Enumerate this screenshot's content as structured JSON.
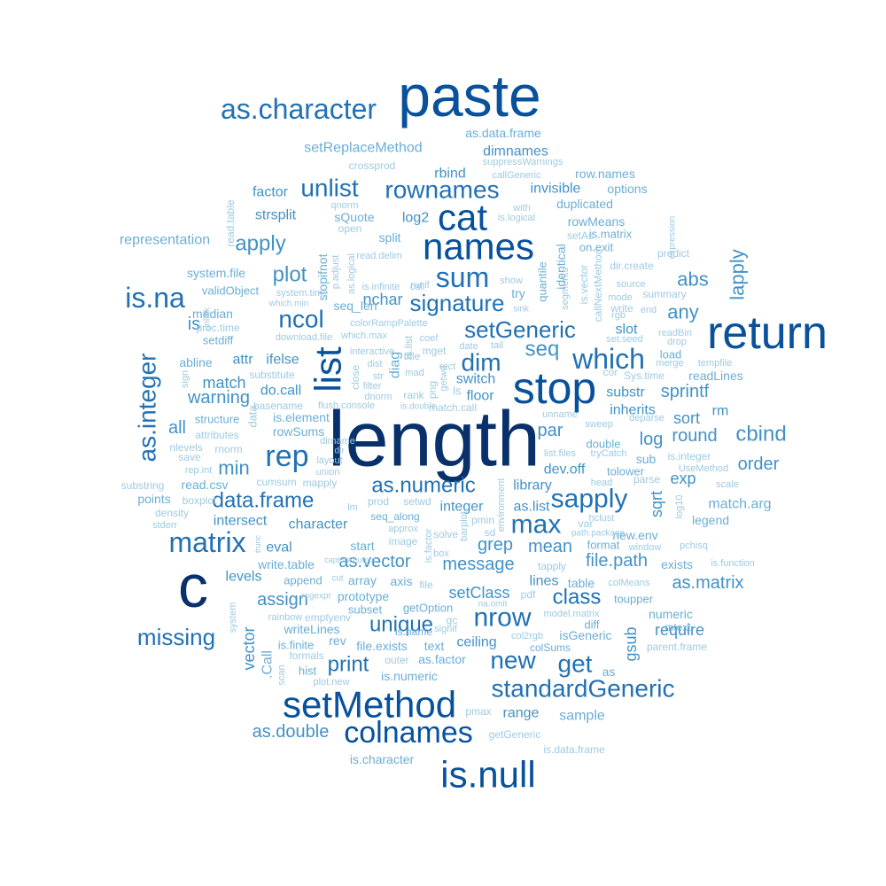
{
  "colors": {
    "background": "#ffffff",
    "tiers": [
      "#08306b",
      "#08519c",
      "#2171b5",
      "#4292c6",
      "#6baed6",
      "#9ecae1"
    ]
  },
  "words": [
    {
      "text": "length",
      "tier": 0
    },
    {
      "text": "c",
      "tier": 0
    },
    {
      "text": "paste",
      "tier": 1
    },
    {
      "text": "return",
      "tier": 1
    },
    {
      "text": "stop",
      "tier": 1
    },
    {
      "text": "is.null",
      "tier": 1
    },
    {
      "text": "names",
      "tier": 1
    },
    {
      "text": "cat",
      "tier": 1
    },
    {
      "text": "list",
      "tier": 1
    },
    {
      "text": "setMethod",
      "tier": 1
    },
    {
      "text": "colnames",
      "tier": 1
    },
    {
      "text": "as.character",
      "tier": 2
    },
    {
      "text": "rep",
      "tier": 2
    },
    {
      "text": "matrix",
      "tier": 2
    },
    {
      "text": "is.na",
      "tier": 2
    },
    {
      "text": "sum",
      "tier": 2
    },
    {
      "text": "which",
      "tier": 2
    },
    {
      "text": "sapply",
      "tier": 2
    },
    {
      "text": "nrow",
      "tier": 2
    },
    {
      "text": "max",
      "tier": 2
    },
    {
      "text": "standardGeneric",
      "tier": 2
    },
    {
      "text": "as.integer",
      "tier": 2
    },
    {
      "text": "unlist",
      "tier": 2
    },
    {
      "text": "rownames",
      "tier": 2
    },
    {
      "text": "dim",
      "tier": 2
    },
    {
      "text": "ncol",
      "tier": 2
    },
    {
      "text": "setGeneric",
      "tier": 2
    },
    {
      "text": "signature",
      "tier": 2
    },
    {
      "text": "data.frame",
      "tier": 2
    },
    {
      "text": "as.numeric",
      "tier": 2
    },
    {
      "text": "unique",
      "tier": 2
    },
    {
      "text": "missing",
      "tier": 2
    },
    {
      "text": "get",
      "tier": 2
    },
    {
      "text": "new",
      "tier": 2
    },
    {
      "text": "print",
      "tier": 2
    },
    {
      "text": "class",
      "tier": 2
    },
    {
      "text": "apply",
      "tier": 3
    },
    {
      "text": "plot",
      "tier": 3
    },
    {
      "text": "lapply",
      "tier": 3
    },
    {
      "text": "any",
      "tier": 3
    },
    {
      "text": "abs",
      "tier": 3
    },
    {
      "text": "seq",
      "tier": 3
    },
    {
      "text": "cbind",
      "tier": 3
    },
    {
      "text": "min",
      "tier": 3
    },
    {
      "text": "order",
      "tier": 3
    },
    {
      "text": "as.matrix",
      "tier": 3
    },
    {
      "text": "grep",
      "tier": 3
    },
    {
      "text": "mean",
      "tier": 3
    },
    {
      "text": "file.path",
      "tier": 3
    },
    {
      "text": "as.vector",
      "tier": 3
    },
    {
      "text": "message",
      "tier": 3
    },
    {
      "text": "assign",
      "tier": 3
    },
    {
      "text": "as.double",
      "tier": 3
    },
    {
      "text": "par",
      "tier": 3
    },
    {
      "text": "sprintf",
      "tier": 3
    },
    {
      "text": "round",
      "tier": 3
    },
    {
      "text": "log",
      "tier": 3
    },
    {
      "text": "sqrt",
      "tier": 3
    },
    {
      "text": "exp",
      "tier": 3
    },
    {
      "text": "gsub",
      "tier": 3
    },
    {
      "text": "vector",
      "tier": 3
    },
    {
      "text": "all",
      "tier": 3
    },
    {
      "text": "is",
      "tier": 3
    },
    {
      "text": "warning",
      "tier": 3
    },
    {
      "text": "match",
      "tier": 3
    },
    {
      "text": "setClass",
      "tier": 3
    },
    {
      "text": "require",
      "tier": 3
    },
    {
      "text": "sort",
      "tier": 3
    },
    {
      "text": "switch",
      "tier": 3
    },
    {
      "text": "dimnames",
      "tier": 3
    },
    {
      "text": "nchar",
      "tier": 3
    },
    {
      "text": "strsplit",
      "tier": 3
    },
    {
      "text": "log2",
      "tier": 3
    },
    {
      "text": "do.call",
      "tier": 3
    },
    {
      "text": "ifelse",
      "tier": 3
    },
    {
      "text": "attr",
      "tier": 3
    },
    {
      "text": "eval",
      "tier": 3
    },
    {
      "text": "character",
      "tier": 3
    },
    {
      "text": "intersect",
      "tier": 3
    },
    {
      "text": "library",
      "tier": 3
    },
    {
      "text": "as.list",
      "tier": 3
    },
    {
      "text": "integer",
      "tier": 3
    },
    {
      "text": "lines",
      "tier": 3
    },
    {
      "text": "levels",
      "tier": 3
    },
    {
      "text": "rbind",
      "tier": 3
    },
    {
      "text": "invisible",
      "tier": 3
    },
    {
      "text": "factor",
      "tier": 3
    },
    {
      "text": "floor",
      "tier": 3
    },
    {
      "text": "slot",
      "tier": 3
    },
    {
      "text": "substr",
      "tier": 3
    },
    {
      "text": "inherits",
      "tier": 3
    },
    {
      "text": "rm",
      "tier": 3
    },
    {
      "text": "dev.off",
      "tier": 3
    },
    {
      "text": "ceiling",
      "tier": 3
    },
    {
      "text": "range",
      "tier": 3
    },
    {
      "text": "sample",
      "tier": 4
    },
    {
      "text": "setReplaceMethod",
      "tier": 4
    },
    {
      "text": "representation",
      "tier": 4
    },
    {
      "text": "system.file",
      "tier": 4
    },
    {
      "text": "as.data.frame",
      "tier": 4
    },
    {
      "text": "duplicated",
      "tier": 4
    },
    {
      "text": "options",
      "tier": 4
    },
    {
      "text": "row.names",
      "tier": 4
    },
    {
      "text": "rowMeans",
      "tier": 4
    },
    {
      "text": "is.matrix",
      "tier": 4
    },
    {
      "text": "on.exit",
      "tier": 4
    },
    {
      "text": "split",
      "tier": 4
    },
    {
      "text": "stopifnot",
      "tier": 4
    },
    {
      "text": "seq_len",
      "tier": 4
    },
    {
      "text": "try",
      "tier": 4
    },
    {
      "text": "identical",
      "tier": 4
    },
    {
      "text": "quantile",
      "tier": 4
    },
    {
      "text": "median",
      "tier": 4
    },
    {
      "text": "setdiff",
      "tier": 4
    },
    {
      "text": "abline",
      "tier": 4
    },
    {
      "text": "readLines",
      "tier": 4
    },
    {
      "text": "is.element",
      "tier": 4
    },
    {
      "text": "rowSums",
      "tier": 4
    },
    {
      "text": "structure",
      "tier": 4
    },
    {
      "text": "double",
      "tier": 4
    },
    {
      "text": "sub",
      "tier": 4
    },
    {
      "text": "tolower",
      "tier": 4
    },
    {
      "text": "match.arg",
      "tier": 4
    },
    {
      "text": "legend",
      "tier": 4
    },
    {
      "text": "read.csv",
      "tier": 4
    },
    {
      "text": "points",
      "tier": 4
    },
    {
      "text": "write.table",
      "tier": 4
    },
    {
      "text": "start",
      "tier": 4
    },
    {
      "text": "seq_along",
      "tier": 4
    },
    {
      "text": "table",
      "tier": 4
    },
    {
      "text": "format",
      "tier": 4
    },
    {
      "text": "new.env",
      "tier": 4
    },
    {
      "text": "exists",
      "tier": 4
    },
    {
      "text": "numeric",
      "tier": 4
    },
    {
      "text": "toupper",
      "tier": 4
    },
    {
      "text": "append",
      "tier": 4
    },
    {
      "text": "array",
      "tier": 4
    },
    {
      "text": "axis",
      "tier": 4
    },
    {
      "text": "prototype",
      "tier": 4
    },
    {
      "text": "subset",
      "tier": 4
    },
    {
      "text": "getOption",
      "tier": 4
    },
    {
      "text": "writeLines",
      "tier": 4
    },
    {
      "text": "is.finite",
      "tier": 4
    },
    {
      "text": "file.exists",
      "tier": 4
    },
    {
      "text": "text",
      "tier": 4
    },
    {
      "text": "is.name",
      "tier": 4
    },
    {
      "text": "as.factor",
      "tier": 4
    },
    {
      "text": "is.numeric",
      "tier": 4
    },
    {
      "text": "isGeneric",
      "tier": 4
    },
    {
      "text": "colSums",
      "tier": 4
    },
    {
      "text": "as",
      "tier": 4
    },
    {
      "text": "rev",
      "tier": 4
    },
    {
      "text": "hist",
      "tier": 4
    },
    {
      "text": ".Call",
      "tier": 4
    },
    {
      "text": "is.character",
      "tier": 4
    },
    {
      "text": "getGeneric",
      "tier": 5
    },
    {
      "text": "is.data.frame",
      "tier": 5
    },
    {
      "text": "pmax",
      "tier": 5
    },
    {
      "text": "mtext",
      "tier": 4
    },
    {
      "text": "parent.frame",
      "tier": 5
    },
    {
      "text": "diff",
      "tier": 4
    },
    {
      "text": "model.matrix",
      "tier": 5
    },
    {
      "text": "colMeans",
      "tier": 5
    },
    {
      "text": "load",
      "tier": 4
    },
    {
      "text": "Sys.time",
      "tier": 5
    },
    {
      "text": "is.integer",
      "tier": 5
    },
    {
      "text": "summary",
      "tier": 5
    },
    {
      "text": "source",
      "tier": 5
    },
    {
      "text": "predict",
      "tier": 5
    },
    {
      "text": "mode",
      "tier": 5
    },
    {
      "text": "write",
      "tier": 5
    },
    {
      "text": "end",
      "tier": 5
    },
    {
      "text": "dir.create",
      "tier": 5
    },
    {
      "text": "setAs",
      "tier": 5
    },
    {
      "text": "is.vector",
      "tier": 5
    },
    {
      "text": "callNextMethod",
      "tier": 5
    },
    {
      "text": "rgb",
      "tier": 5
    },
    {
      "text": "set.seed",
      "tier": 5
    },
    {
      "text": "readBin",
      "tier": 5
    },
    {
      "text": "drop",
      "tier": 5
    },
    {
      "text": "merge",
      "tier": 5
    },
    {
      "text": "tempfile",
      "tier": 5
    },
    {
      "text": "expression",
      "tier": 5
    },
    {
      "text": "cor",
      "tier": 5
    },
    {
      "text": "unname",
      "tier": 5
    },
    {
      "text": "sweep",
      "tier": 5
    },
    {
      "text": "deparse",
      "tier": 5
    },
    {
      "text": "UseMethod",
      "tier": 5
    },
    {
      "text": "scale",
      "tier": 5
    },
    {
      "text": "parse",
      "tier": 5
    },
    {
      "text": "head",
      "tier": 5
    },
    {
      "text": "log10",
      "tier": 5
    },
    {
      "text": "pchisq",
      "tier": 5
    },
    {
      "text": "window",
      "tier": 5
    },
    {
      "text": "is.function",
      "tier": 5
    },
    {
      "text": "hclust",
      "tier": 5
    },
    {
      "text": "var",
      "tier": 5
    },
    {
      "text": "path.package",
      "tier": 5
    },
    {
      "text": "tapply",
      "tier": 5
    },
    {
      "text": "list.files",
      "tier": 5
    },
    {
      "text": "tryCatch",
      "tier": 5
    },
    {
      "text": "environment",
      "tier": 5
    },
    {
      "text": "pmin",
      "tier": 5
    },
    {
      "text": "sd",
      "tier": 5
    },
    {
      "text": "barplot",
      "tier": 5
    },
    {
      "text": "solve",
      "tier": 5
    },
    {
      "text": "is.factor",
      "tier": 5
    },
    {
      "text": "box",
      "tier": 5
    },
    {
      "text": "image",
      "tier": 5
    },
    {
      "text": "approx",
      "tier": 5
    },
    {
      "text": "setwd",
      "tier": 5
    },
    {
      "text": "prod",
      "tier": 5
    },
    {
      "text": "lm",
      "tier": 5
    },
    {
      "text": "substring",
      "tier": 5
    },
    {
      "text": "density",
      "tier": 5
    },
    {
      "text": "stderr",
      "tier": 5
    },
    {
      "text": "boxplot",
      "tier": 5
    },
    {
      "text": "rep.int",
      "tier": 5
    },
    {
      "text": "cumsum",
      "tier": 5
    },
    {
      "text": "mapply",
      "tier": 5
    },
    {
      "text": "rnorm",
      "tier": 5
    },
    {
      "text": "nlevels",
      "tier": 5
    },
    {
      "text": "save",
      "tier": 5
    },
    {
      "text": "attributes",
      "tier": 5
    },
    {
      "text": "layout",
      "tier": 5
    },
    {
      "text": "union",
      "tier": 5
    },
    {
      "text": "dir",
      "tier": 5
    },
    {
      "text": "dirname",
      "tier": 5
    },
    {
      "text": "basename",
      "tier": 5
    },
    {
      "text": "flush.console",
      "tier": 5
    },
    {
      "text": "substitute",
      "tier": 5
    },
    {
      "text": "data",
      "tier": 5
    },
    {
      "text": "sign",
      "tier": 5
    },
    {
      "text": "proc.time",
      "tier": 5
    },
    {
      "text": "unlink",
      "tier": 5
    },
    {
      "text": "validObject",
      "tier": 4
    },
    {
      "text": "system.time",
      "tier": 5
    },
    {
      "text": "which.min",
      "tier": 5
    },
    {
      "text": "download.file",
      "tier": 5
    },
    {
      "text": "which.max",
      "tier": 5
    },
    {
      "text": "colorRampPalette",
      "tier": 5
    },
    {
      "text": "interactive",
      "tier": 5
    },
    {
      "text": "close",
      "tier": 5
    },
    {
      "text": "filter",
      "tier": 5
    },
    {
      "text": "dist",
      "tier": 5
    },
    {
      "text": "str",
      "tier": 5
    },
    {
      "text": "dnorm",
      "tier": 5
    },
    {
      "text": "is.double",
      "tier": 5
    },
    {
      "text": "match.call",
      "tier": 5
    },
    {
      "text": "rank",
      "tier": 5
    },
    {
      "text": "mad",
      "tier": 5
    },
    {
      "text": "diag",
      "tier": 4
    },
    {
      "text": "coef",
      "tier": 5
    },
    {
      "text": "mget",
      "tier": 5
    },
    {
      "text": "is.list",
      "tier": 5
    },
    {
      "text": "rect",
      "tier": 5
    },
    {
      "text": "date",
      "tier": 5
    },
    {
      "text": "tail",
      "tier": 5
    },
    {
      "text": "sink",
      "tier": 5
    },
    {
      "text": "ls",
      "tier": 5
    },
    {
      "text": "png",
      "tier": 5
    },
    {
      "text": "getwd",
      "tier": 5
    },
    {
      "text": "runif",
      "tier": 5
    },
    {
      "text": "call",
      "tier": 5
    },
    {
      "text": "is.infinite",
      "tier": 5
    },
    {
      "text": "as.logical",
      "tier": 5
    },
    {
      "text": "p.adjust",
      "tier": 5
    },
    {
      "text": "sQuote",
      "tier": 4
    },
    {
      "text": "open",
      "tier": 5
    },
    {
      "text": "read.delim",
      "tier": 5
    },
    {
      "text": "qnorm",
      "tier": 5
    },
    {
      "text": "is.logical",
      "tier": 5
    },
    {
      "text": "with",
      "tier": 5
    },
    {
      "text": "show",
      "tier": 5
    },
    {
      "text": "segments",
      "tier": 5
    },
    {
      "text": "crossprod",
      "tier": 5
    },
    {
      "text": "suppressWarnings",
      "tier": 5
    },
    {
      "text": "callGeneric",
      "tier": 5
    },
    {
      "text": "read.table",
      "tier": 5
    },
    {
      "text": "regexpr",
      "tier": 5
    },
    {
      "text": "capture.output",
      "tier": 5
    },
    {
      "text": "trunc",
      "tier": 5
    },
    {
      "text": "cut",
      "tier": 5
    },
    {
      "text": "file",
      "tier": 5
    },
    {
      "text": "pdf",
      "tier": 5
    },
    {
      "text": "na.omit",
      "tier": 5
    },
    {
      "text": "gc",
      "tier": 5
    },
    {
      "text": "signif",
      "tier": 5
    },
    {
      "text": "title",
      "tier": 5
    },
    {
      "text": "rainbow",
      "tier": 5
    },
    {
      "text": "emptyenv",
      "tier": 5
    },
    {
      "text": "formals",
      "tier": 5
    },
    {
      "text": "scan",
      "tier": 5
    },
    {
      "text": "plot.new",
      "tier": 5
    },
    {
      "text": "outer",
      "tier": 5
    },
    {
      "text": "col2rgb",
      "tier": 5
    },
    {
      "text": "system",
      "tier": 5
    }
  ]
}
